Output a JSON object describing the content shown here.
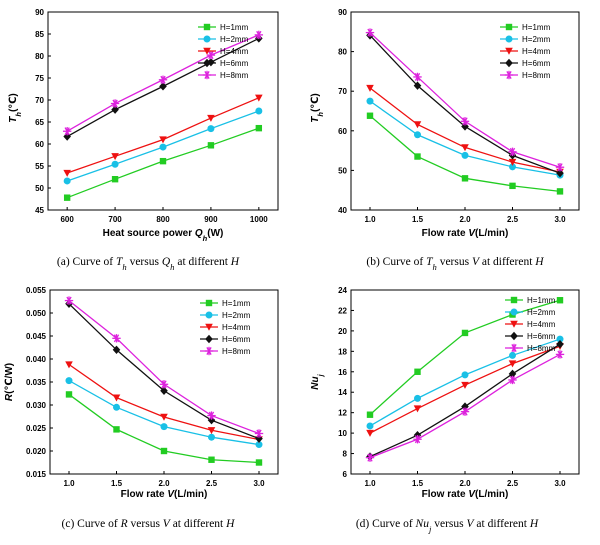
{
  "chart_data": [
    {
      "id": "a",
      "type": "line",
      "x": [
        600,
        700,
        800,
        900,
        1000
      ],
      "xlim": [
        560,
        1040
      ],
      "xticks": [
        600,
        700,
        800,
        900,
        1000
      ],
      "ylim": [
        45,
        90
      ],
      "yticks": [
        45,
        50,
        55,
        60,
        65,
        70,
        75,
        80,
        85,
        90
      ],
      "xlabel": "Heat source power Q_h(W)",
      "ylabel": "T_h(℃)",
      "caption": "(a) Curve of T_h versus Q_h at different H",
      "series": [
        {
          "name": "H=1mm",
          "values": [
            47.8,
            52.0,
            56.1,
            59.7,
            63.6
          ]
        },
        {
          "name": "H=2mm",
          "values": [
            51.6,
            55.4,
            59.3,
            63.5,
            67.5
          ]
        },
        {
          "name": "H=4mm",
          "values": [
            53.4,
            57.2,
            61.0,
            65.9,
            70.5
          ]
        },
        {
          "name": "H=6mm",
          "values": [
            61.7,
            67.8,
            73.1,
            78.6,
            84.0
          ]
        },
        {
          "name": "H=8mm",
          "values": [
            62.9,
            69.2,
            74.6,
            80.2,
            84.8
          ]
        }
      ]
    },
    {
      "id": "b",
      "type": "line",
      "x": [
        1.0,
        1.5,
        2.0,
        2.5,
        3.0
      ],
      "xlim": [
        0.8,
        3.2
      ],
      "xticks": [
        1.0,
        1.5,
        2.0,
        2.5,
        3.0
      ],
      "ylim": [
        40,
        90
      ],
      "yticks": [
        40,
        50,
        60,
        70,
        80,
        90
      ],
      "xlabel": "Flow rate V(L/min)",
      "ylabel": "T_h(℃)",
      "caption": "(b) Curve of T_h versus V at different H",
      "series": [
        {
          "name": "H=1mm",
          "values": [
            63.8,
            53.5,
            48.0,
            46.1,
            44.7
          ]
        },
        {
          "name": "H=2mm",
          "values": [
            67.5,
            59.0,
            53.8,
            50.9,
            48.8
          ]
        },
        {
          "name": "H=4mm",
          "values": [
            70.8,
            61.6,
            55.8,
            52.1,
            49.6
          ]
        },
        {
          "name": "H=6mm",
          "values": [
            84.1,
            71.4,
            61.1,
            53.8,
            49.3
          ]
        },
        {
          "name": "H=8mm",
          "values": [
            84.8,
            73.6,
            62.4,
            54.7,
            50.8
          ]
        }
      ]
    },
    {
      "id": "c",
      "type": "line",
      "x": [
        1.0,
        1.5,
        2.0,
        2.5,
        3.0
      ],
      "xlim": [
        0.8,
        3.2
      ],
      "xticks": [
        1.0,
        1.5,
        2.0,
        2.5,
        3.0
      ],
      "ylim": [
        0.015,
        0.055
      ],
      "yticks": [
        0.015,
        0.02,
        0.025,
        0.03,
        0.035,
        0.04,
        0.045,
        0.05,
        0.055
      ],
      "xlabel": "Flow rate V(L/min)",
      "ylabel": "R(℃/W)",
      "caption": "(c) Curve of R versus V at different H",
      "series": [
        {
          "name": "H=1mm",
          "values": [
            0.0323,
            0.0247,
            0.02,
            0.0181,
            0.0175
          ]
        },
        {
          "name": "H=2mm",
          "values": [
            0.0353,
            0.0295,
            0.0253,
            0.023,
            0.0214
          ]
        },
        {
          "name": "H=4mm",
          "values": [
            0.0388,
            0.0316,
            0.0274,
            0.0245,
            0.0225
          ]
        },
        {
          "name": "H=6mm",
          "values": [
            0.052,
            0.042,
            0.0331,
            0.0267,
            0.0227
          ]
        },
        {
          "name": "H=8mm",
          "values": [
            0.0527,
            0.0445,
            0.0345,
            0.0277,
            0.0238
          ]
        }
      ]
    },
    {
      "id": "d",
      "type": "line",
      "x": [
        1.0,
        1.5,
        2.0,
        2.5,
        3.0
      ],
      "xlim": [
        0.8,
        3.2
      ],
      "xticks": [
        1.0,
        1.5,
        2.0,
        2.5,
        3.0
      ],
      "ylim": [
        6,
        24
      ],
      "yticks": [
        6,
        8,
        10,
        12,
        14,
        16,
        18,
        20,
        22,
        24
      ],
      "xlabel": "Flow rate V(L/min)",
      "ylabel": "Nu_j",
      "caption": "(d) Curve of Nu_j versus V at different H",
      "series": [
        {
          "name": "H=1mm",
          "values": [
            11.8,
            16.0,
            19.8,
            21.6,
            23.0
          ]
        },
        {
          "name": "H=2mm",
          "values": [
            10.7,
            13.4,
            15.7,
            17.6,
            19.2
          ]
        },
        {
          "name": "H=4mm",
          "values": [
            10.0,
            12.4,
            14.7,
            16.8,
            18.5
          ]
        },
        {
          "name": "H=6mm",
          "values": [
            7.7,
            9.8,
            12.6,
            15.8,
            18.7
          ]
        },
        {
          "name": "H=8mm",
          "values": [
            7.6,
            9.4,
            12.1,
            15.2,
            17.7
          ]
        }
      ]
    }
  ],
  "styles": {
    "colors": [
      "#22cc22",
      "#19c0e6",
      "#ee1111",
      "#111111",
      "#dd22dd"
    ],
    "markers": [
      "square",
      "circle",
      "triangle-down",
      "diamond",
      "star"
    ]
  }
}
